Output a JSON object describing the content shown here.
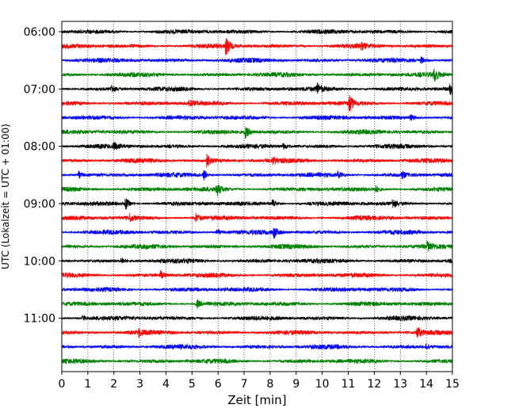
{
  "chart_data": {
    "type": "line",
    "title": "",
    "xlabel": "Zeit  [min]",
    "ylabel": "UTC (Lokalzeit = UTC + 01:00)",
    "xlim": [
      0,
      15
    ],
    "x_ticks": [
      0,
      1,
      2,
      3,
      4,
      5,
      6,
      7,
      8,
      9,
      10,
      11,
      12,
      13,
      14,
      15
    ],
    "x_tick_labels": [
      "0",
      "1",
      "2",
      "3",
      "4",
      "5",
      "6",
      "7",
      "8",
      "9",
      "10",
      "11",
      "12",
      "13",
      "14",
      "15"
    ],
    "y_tick_labels": [
      "06:00",
      "07:00",
      "08:00",
      "09:00",
      "10:00",
      "11:00"
    ],
    "trace_start_times": [
      "06:00",
      "06:15",
      "06:30",
      "06:45",
      "07:00",
      "07:15",
      "07:30",
      "07:45",
      "08:00",
      "08:15",
      "08:30",
      "08:45",
      "09:00",
      "09:15",
      "09:30",
      "09:45",
      "10:00",
      "10:15",
      "10:30",
      "10:45",
      "11:00",
      "11:15",
      "11:30",
      "11:45"
    ],
    "trace_colors": [
      "#000000",
      "#ff0000",
      "#0000ff",
      "#008000"
    ],
    "grid": {
      "x": true,
      "style": "dotted"
    },
    "events": [
      {
        "trace": 1,
        "minute": 6.3,
        "amplitude": 1.0
      },
      {
        "trace": 1,
        "minute": 11.5,
        "amplitude": 0.3
      },
      {
        "trace": 2,
        "minute": 13.8,
        "amplitude": 0.35
      },
      {
        "trace": 3,
        "minute": 14.3,
        "amplitude": 0.8
      },
      {
        "trace": 4,
        "minute": 1.9,
        "amplitude": 0.45
      },
      {
        "trace": 4,
        "minute": 9.8,
        "amplitude": 0.6
      },
      {
        "trace": 4,
        "minute": 14.9,
        "amplitude": 0.7
      },
      {
        "trace": 5,
        "minute": 4.9,
        "amplitude": 0.3
      },
      {
        "trace": 5,
        "minute": 11.05,
        "amplitude": 0.9
      },
      {
        "trace": 6,
        "minute": 13.4,
        "amplitude": 0.4
      },
      {
        "trace": 7,
        "minute": 7.05,
        "amplitude": 0.7
      },
      {
        "trace": 8,
        "minute": 2.0,
        "amplitude": 0.35
      },
      {
        "trace": 8,
        "minute": 8.5,
        "amplitude": 0.35
      },
      {
        "trace": 9,
        "minute": 5.55,
        "amplitude": 0.9
      },
      {
        "trace": 9,
        "minute": 8.1,
        "amplitude": 0.4
      },
      {
        "trace": 10,
        "minute": 0.65,
        "amplitude": 0.4
      },
      {
        "trace": 10,
        "minute": 5.45,
        "amplitude": 0.6
      },
      {
        "trace": 10,
        "minute": 10.6,
        "amplitude": 0.35
      },
      {
        "trace": 10,
        "minute": 13.05,
        "amplitude": 0.4
      },
      {
        "trace": 11,
        "minute": 5.95,
        "amplitude": 0.7
      },
      {
        "trace": 11,
        "minute": 12.05,
        "amplitude": 0.4
      },
      {
        "trace": 12,
        "minute": 2.45,
        "amplitude": 0.7
      },
      {
        "trace": 12,
        "minute": 8.1,
        "amplitude": 0.5
      },
      {
        "trace": 12,
        "minute": 12.7,
        "amplitude": 0.5
      },
      {
        "trace": 13,
        "minute": 2.6,
        "amplitude": 0.4
      },
      {
        "trace": 13,
        "minute": 5.15,
        "amplitude": 0.5
      },
      {
        "trace": 14,
        "minute": 5.95,
        "amplitude": 0.4
      },
      {
        "trace": 14,
        "minute": 8.15,
        "amplitude": 0.6
      },
      {
        "trace": 15,
        "minute": 14.05,
        "amplitude": 0.6
      },
      {
        "trace": 16,
        "minute": 2.3,
        "amplitude": 0.35
      },
      {
        "trace": 17,
        "minute": 3.8,
        "amplitude": 0.45
      },
      {
        "trace": 19,
        "minute": 5.2,
        "amplitude": 0.45
      },
      {
        "trace": 20,
        "minute": 0.8,
        "amplitude": 0.3
      },
      {
        "trace": 21,
        "minute": 2.95,
        "amplitude": 0.45
      },
      {
        "trace": 21,
        "minute": 13.65,
        "amplitude": 0.6
      },
      {
        "trace": 22,
        "minute": 14.0,
        "amplitude": 0.3
      }
    ]
  }
}
